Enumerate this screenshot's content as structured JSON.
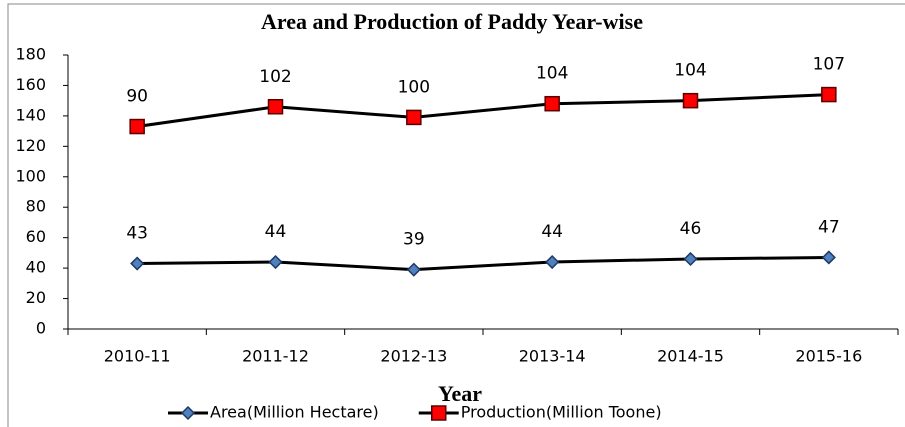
{
  "chart_data": {
    "type": "line",
    "stacked": true,
    "title": "Area and Production of Paddy Year-wise",
    "x_label": "Year",
    "categories": [
      "2010-11",
      "2011-12",
      "2012-13",
      "2013-14",
      "2014-15",
      "2015-16"
    ],
    "series": [
      {
        "name": "Area(Million Hectare)",
        "color": "#4f81bd",
        "marker": "diamond",
        "values": [
          43,
          44,
          39,
          44,
          46,
          47
        ]
      },
      {
        "name": "Production(Million Toone)",
        "color": "#ff0000",
        "marker": "square",
        "values": [
          90,
          102,
          100,
          104,
          104,
          107
        ]
      }
    ],
    "ylim": [
      0,
      180
    ],
    "yticks": [
      0,
      20,
      40,
      60,
      80,
      100,
      120,
      140,
      160,
      180
    ],
    "legend": "bottom"
  }
}
